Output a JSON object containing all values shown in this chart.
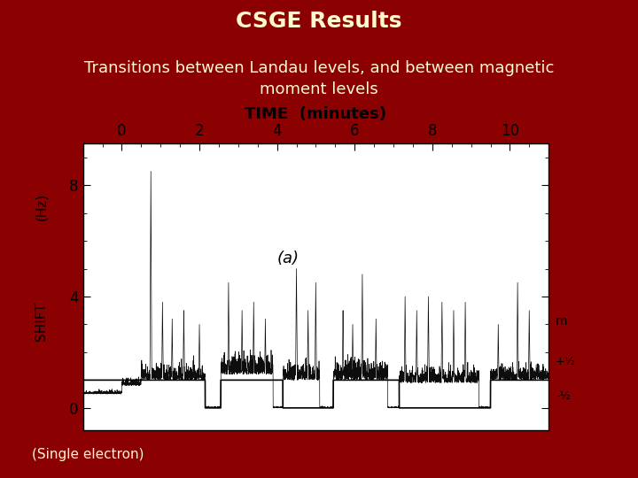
{
  "title": "CSGE Results",
  "subtitle": "Transitions between Landau levels, and between magnetic\nmoment levels",
  "footnote": "(Single electron)",
  "bg_color": "#8B0000",
  "title_color": "#FFFACD",
  "xlabel": "TIME  (minutes)",
  "annotation": "(a)",
  "m_label": "m",
  "m_plus": "+½",
  "m_minus": "-½",
  "xmin": -1,
  "xmax": 11,
  "ymin": -0.8,
  "ymax": 9.5,
  "yticks": [
    0,
    4,
    8
  ],
  "xticks": [
    0,
    2,
    4,
    6,
    8,
    10
  ],
  "title_fontsize": 18,
  "subtitle_fontsize": 13,
  "tick_fontsize": 12
}
